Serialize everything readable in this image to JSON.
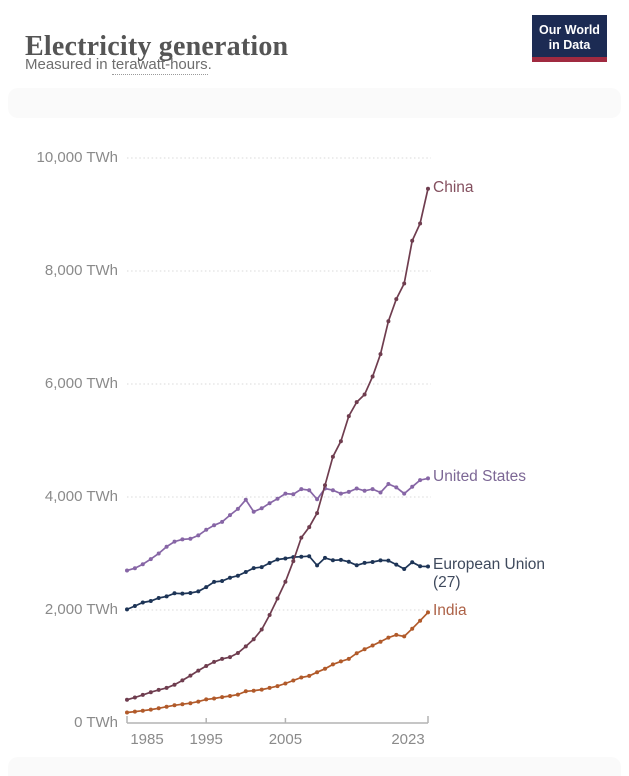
{
  "header": {
    "title": "Electricity generation",
    "subtitle_prefix": "Measured in ",
    "subtitle_link_text": "terawatt-hours",
    "subtitle_suffix": "."
  },
  "logo": {
    "line1": "Our World",
    "line2": "in Data",
    "bg_color": "#1c2b53",
    "stripe_color": "#a02a40"
  },
  "chart_data": {
    "type": "line",
    "title": "Electricity generation",
    "ylabel": "",
    "xlabel": "",
    "unit": "terawatt-hours (TWh)",
    "grid": "horizontal-dotted",
    "legend_position": "end-of-line-labels-right",
    "xlim": [
      1985,
      2023
    ],
    "ylim": [
      0,
      10000
    ],
    "x": [
      1985,
      1986,
      1987,
      1988,
      1989,
      1990,
      1991,
      1992,
      1993,
      1994,
      1995,
      1996,
      1997,
      1998,
      1999,
      2000,
      2001,
      2002,
      2003,
      2004,
      2005,
      2006,
      2007,
      2008,
      2009,
      2010,
      2011,
      2012,
      2013,
      2014,
      2015,
      2016,
      2017,
      2018,
      2019,
      2020,
      2021,
      2022,
      2023
    ],
    "x_tick_labels": [
      "1985",
      "1995",
      "2005",
      "2023"
    ],
    "x_tick_years": [
      1985,
      1995,
      2005,
      2023
    ],
    "y_ticks": [
      {
        "value": 0,
        "label": "0 TWh"
      },
      {
        "value": 2000,
        "label": "2,000 TWh"
      },
      {
        "value": 4000,
        "label": "4,000 TWh"
      },
      {
        "value": 6000,
        "label": "6,000 TWh"
      },
      {
        "value": 8000,
        "label": "8,000 TWh"
      },
      {
        "value": 10000,
        "label": "10,000 TWh"
      }
    ],
    "series": [
      {
        "name": "China",
        "color": "#6f3d4f",
        "label_color": "#84505f",
        "values": [
          411,
          451,
          497,
          545,
          585,
          621,
          678,
          754,
          839,
          928,
          1008,
          1081,
          1134,
          1166,
          1239,
          1356,
          1481,
          1654,
          1911,
          2203,
          2500,
          2866,
          3282,
          3467,
          3715,
          4207,
          4713,
          4988,
          5432,
          5680,
          5815,
          6133,
          6529,
          7111,
          7503,
          7779,
          8534,
          8840,
          9456
        ]
      },
      {
        "name": "United States",
        "color": "#8766a6",
        "label_color": "#7c6795",
        "values": [
          2700,
          2740,
          2810,
          2900,
          3000,
          3120,
          3210,
          3250,
          3260,
          3320,
          3420,
          3500,
          3560,
          3680,
          3790,
          3950,
          3740,
          3800,
          3890,
          3970,
          4060,
          4050,
          4140,
          4120,
          3960,
          4150,
          4120,
          4060,
          4090,
          4150,
          4110,
          4140,
          4080,
          4230,
          4170,
          4060,
          4180,
          4300,
          4330
        ]
      },
      {
        "name": "European Union (27)",
        "color": "#1d3456",
        "label_color": "#3f4a5d",
        "values": [
          2011,
          2071,
          2132,
          2160,
          2212,
          2240,
          2296,
          2290,
          2300,
          2330,
          2406,
          2497,
          2513,
          2571,
          2607,
          2673,
          2742,
          2759,
          2832,
          2894,
          2911,
          2936,
          2943,
          2952,
          2790,
          2922,
          2879,
          2887,
          2853,
          2792,
          2834,
          2850,
          2878,
          2875,
          2804,
          2726,
          2846,
          2774,
          2770
        ]
      },
      {
        "name": "India",
        "color": "#b15a2a",
        "label_color": "#ad6247",
        "values": [
          186,
          202,
          218,
          237,
          261,
          289,
          313,
          333,
          351,
          378,
          417,
          433,
          458,
          477,
          503,
          561,
          572,
          592,
          621,
          653,
          699,
          753,
          805,
          834,
          899,
          960,
          1037,
          1091,
          1135,
          1235,
          1304,
          1372,
          1439,
          1512,
          1559,
          1533,
          1669,
          1811,
          1958
        ]
      }
    ]
  }
}
